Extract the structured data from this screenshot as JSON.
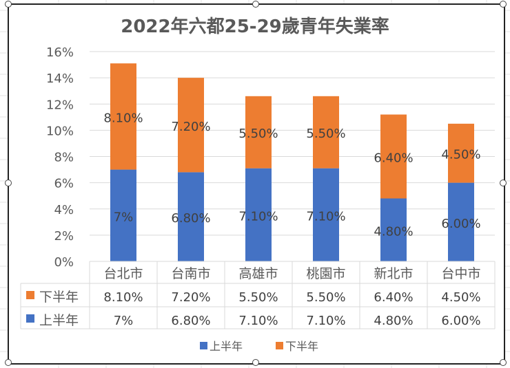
{
  "chart_data": {
    "type": "bar",
    "stacked": true,
    "title": "2022年六都25-29歲青年失業率",
    "categories": [
      "台北市",
      "台南市",
      "高雄市",
      "桃園市",
      "新北市",
      "台中市"
    ],
    "series": [
      {
        "name": "上半年",
        "values": [
          7.0,
          6.8,
          7.1,
          7.1,
          4.8,
          6.0
        ],
        "labels": [
          "7%",
          "6.80%",
          "7.10%",
          "7.10%",
          "4.80%",
          "6.00%"
        ],
        "color": "#4472C4"
      },
      {
        "name": "下半年",
        "values": [
          8.1,
          7.2,
          5.5,
          5.5,
          6.4,
          4.5
        ],
        "labels": [
          "8.10%",
          "7.20%",
          "5.50%",
          "5.50%",
          "6.40%",
          "4.50%"
        ],
        "color": "#ED7D31"
      }
    ],
    "ylim": [
      0,
      16
    ],
    "yticks": [
      "0%",
      "2%",
      "4%",
      "6%",
      "8%",
      "10%",
      "12%",
      "14%",
      "16%"
    ],
    "grid": true,
    "data_table": true,
    "legend": "bottom"
  }
}
